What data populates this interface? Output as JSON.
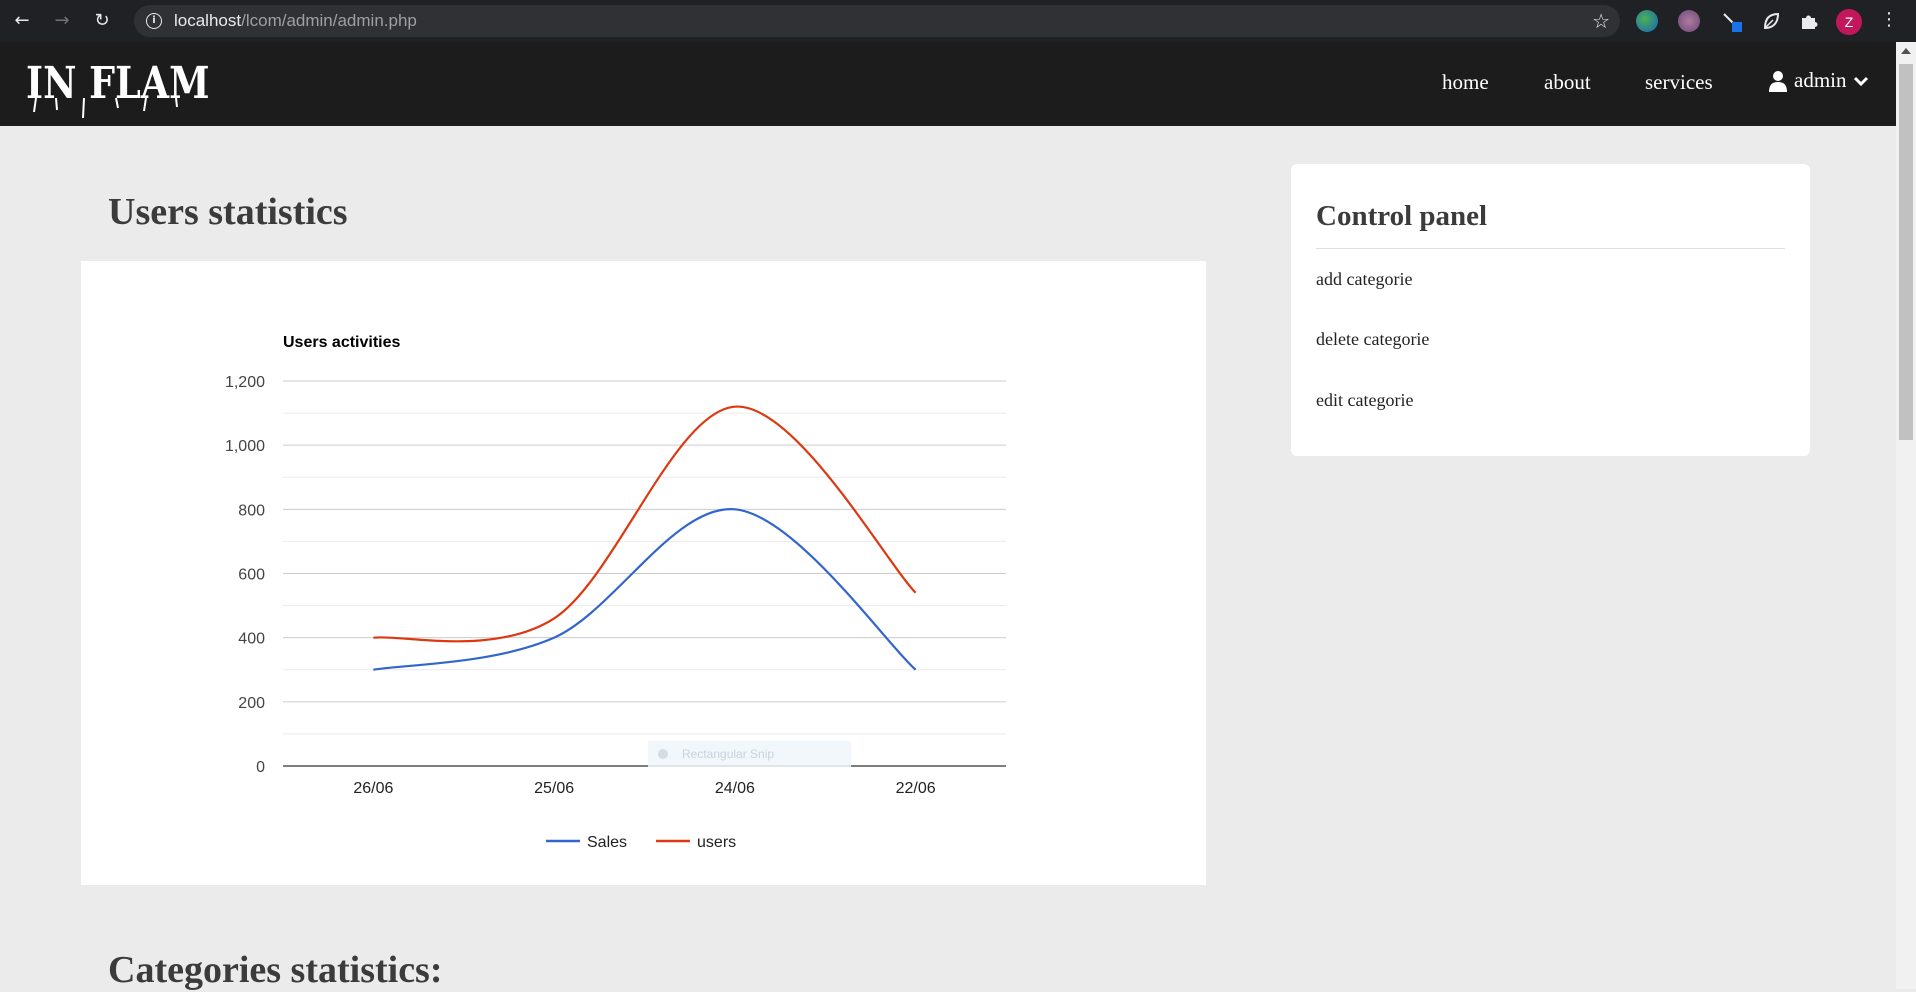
{
  "browser": {
    "url_host": "localhost",
    "url_path": "/lcom/admin/admin.php",
    "profile_initial": "Z"
  },
  "site": {
    "logo_text": "IN FLAMES",
    "nav": {
      "home": "home",
      "about": "about",
      "services": "services",
      "admin": "admin"
    }
  },
  "page": {
    "users_title": "Users statistics",
    "categories_title": "Categories statistics:"
  },
  "control_panel": {
    "title": "Control panel",
    "links": [
      "add categorie",
      "delete categorie",
      "edit categorie"
    ]
  },
  "overlay": {
    "snip_label": "Rectangular Snip"
  },
  "chart_data": {
    "type": "line",
    "title": "Users activities",
    "xlabel": "",
    "ylabel": "",
    "categories": [
      "26/06",
      "25/06",
      "24/06",
      "22/06"
    ],
    "series": [
      {
        "name": "Sales",
        "values": [
          300,
          400,
          800,
          300
        ],
        "color": "#3366cc"
      },
      {
        "name": "users",
        "values": [
          400,
          460,
          1120,
          540
        ],
        "color": "#dc3912"
      }
    ],
    "ylim": [
      0,
      1200
    ],
    "yticks": [
      0,
      200,
      400,
      600,
      800,
      1000,
      1200
    ],
    "ytick_labels": [
      "0",
      "200",
      "400",
      "600",
      "800",
      "1,000",
      "1,200"
    ],
    "grid": true,
    "legend": "bottom",
    "curve": "smooth"
  }
}
